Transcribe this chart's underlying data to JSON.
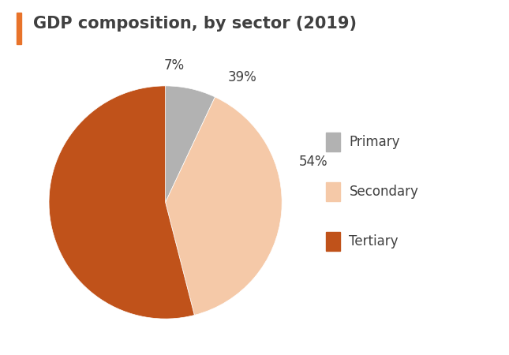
{
  "title": "GDP composition, by sector (2019)",
  "title_color": "#404040",
  "title_fontsize": 15,
  "accent_color": "#E8732A",
  "background_color": "#ffffff",
  "sectors": [
    "Primary",
    "Secondary",
    "Tertiary"
  ],
  "values": [
    7,
    39,
    54
  ],
  "colors": [
    "#b2b2b2",
    "#f5c9a8",
    "#c0521a"
  ],
  "labels": [
    "7%",
    "39%",
    "54%"
  ],
  "label_fontsize": 12,
  "legend_fontsize": 12,
  "startangle": 90
}
